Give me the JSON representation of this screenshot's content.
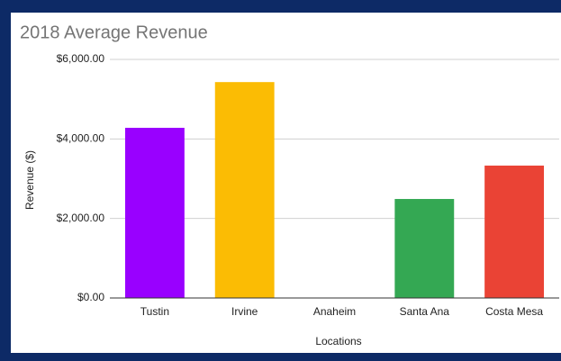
{
  "chart_data": {
    "type": "bar",
    "title": "2018 Average Revenue",
    "x_label": "Locations",
    "y_label": "Revenue ($)",
    "categories": [
      "Tustin",
      "Irvine",
      "Anaheim",
      "Santa Ana",
      "Costa Mesa"
    ],
    "values": [
      4280,
      5430,
      0,
      2490,
      3330
    ],
    "colors": [
      "#9900ff",
      "#fbbc04",
      "#4285f4",
      "#34a853",
      "#ea4335"
    ],
    "ylim": [
      0,
      6000
    ],
    "yticks": [
      {
        "value": 0,
        "label": "$0.00"
      },
      {
        "value": 2000,
        "label": "$2,000.00"
      },
      {
        "value": 4000,
        "label": "$4,000.00"
      },
      {
        "value": 6000,
        "label": "$6,000.00"
      }
    ],
    "grid": true
  }
}
